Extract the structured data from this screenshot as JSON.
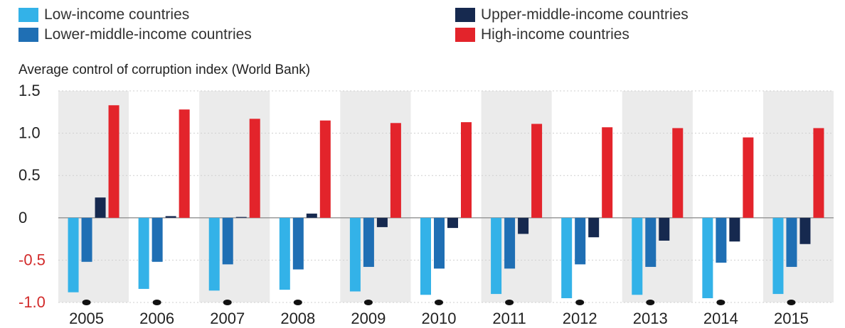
{
  "chart_data": {
    "type": "bar",
    "title": "",
    "ylabel": "Average control of corruption index (World Bank)",
    "xlabel": "",
    "ylim": [
      -1.0,
      1.5
    ],
    "yticks": [
      "1.5",
      "1.0",
      "0.5",
      "0",
      "-0.5",
      "-1.0"
    ],
    "ytick_values": [
      1.5,
      1.0,
      0.5,
      0,
      -0.5,
      -1.0
    ],
    "legend_position": "top",
    "categories": [
      "2005",
      "2006",
      "2007",
      "2008",
      "2009",
      "2010",
      "2011",
      "2012",
      "2013",
      "2014",
      "2015"
    ],
    "series": [
      {
        "name": "Low-income countries",
        "color": "#33b2e8",
        "values": [
          -0.88,
          -0.84,
          -0.86,
          -0.85,
          -0.87,
          -0.91,
          -0.9,
          -0.95,
          -0.91,
          -0.95,
          -0.9
        ]
      },
      {
        "name": "Lower-middle-income countries",
        "color": "#1f6fb4",
        "values": [
          -0.52,
          -0.52,
          -0.55,
          -0.61,
          -0.58,
          -0.6,
          -0.6,
          -0.55,
          -0.58,
          -0.53,
          -0.58
        ]
      },
      {
        "name": "Upper-middle-income countries",
        "color": "#16294f",
        "values": [
          0.24,
          0.02,
          0.01,
          0.05,
          -0.11,
          -0.12,
          -0.19,
          -0.23,
          -0.27,
          -0.28,
          -0.31
        ]
      },
      {
        "name": "High-income countries",
        "color": "#e3242b",
        "values": [
          1.33,
          1.28,
          1.17,
          1.15,
          1.12,
          1.13,
          1.11,
          1.07,
          1.06,
          0.95,
          1.06
        ]
      }
    ],
    "gridlines": true
  }
}
